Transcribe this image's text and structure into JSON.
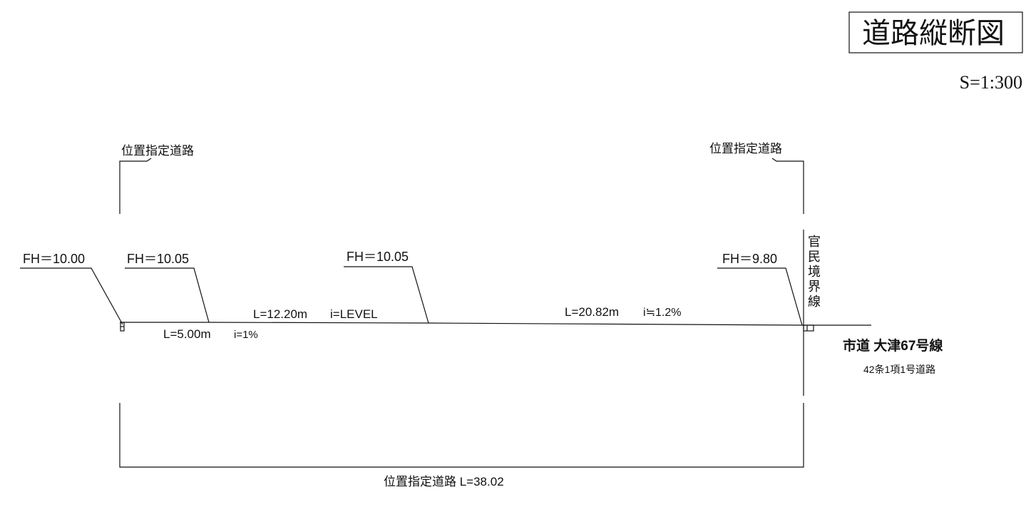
{
  "title": "道路縦断図",
  "scale": "S=1:300",
  "labels": {
    "left_road": "位置指定道路",
    "right_road": "位置指定道路",
    "boundary": [
      "官",
      "民",
      "境",
      "界",
      "線"
    ],
    "bottom_total": "位置指定道路  L=38.02",
    "city_road": "市道 大津67号線",
    "city_road_sub": "42条1項1号道路"
  },
  "elevations": [
    {
      "id": "fh-start",
      "text": "FH＝10.00"
    },
    {
      "id": "fh-2",
      "text": "FH＝10.05"
    },
    {
      "id": "fh-3",
      "text": "FH＝10.05"
    },
    {
      "id": "fh-end",
      "text": "FH＝9.80"
    }
  ],
  "segments": [
    {
      "id": "seg-1",
      "length": "L=5.00m",
      "grade": "i=1%"
    },
    {
      "id": "seg-2",
      "length": "L=12.20m",
      "grade": "i=LEVEL"
    },
    {
      "id": "seg-3",
      "length": "L=20.82m",
      "grade": "i≒1.2%"
    }
  ]
}
